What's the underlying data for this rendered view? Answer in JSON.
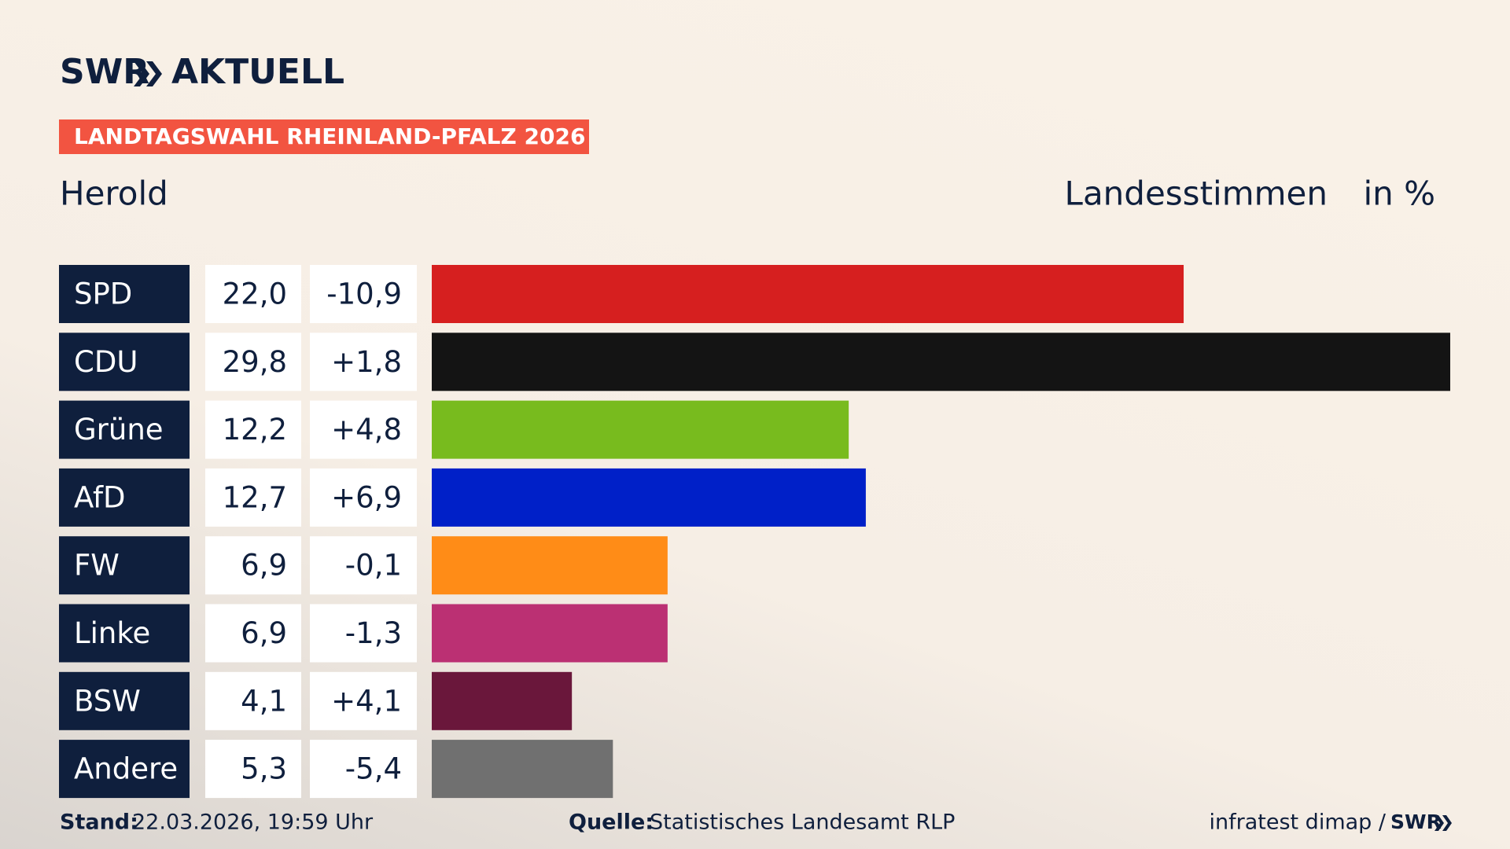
{
  "chart_data": {
    "type": "bar",
    "logo": "SWR",
    "logo_suffix": "AKTUELL",
    "banner": "LANDTAGSWAHL RHEINLAND-PFALZ 2026",
    "title": "Herold",
    "value_header": "Landesstimmen",
    "unit": "in %",
    "categories": [
      "SPD",
      "CDU",
      "Grüne",
      "AfD",
      "FW",
      "Linke",
      "BSW",
      "Andere"
    ],
    "values": [
      22.0,
      29.8,
      12.2,
      12.7,
      6.9,
      6.9,
      4.1,
      5.3
    ],
    "value_labels": [
      "22,0",
      "29,8",
      "12,2",
      "12,7",
      "6,9",
      "6,9",
      "4,1",
      "5,3"
    ],
    "changes": [
      -10.9,
      1.8,
      4.8,
      6.9,
      -0.1,
      -1.3,
      4.1,
      -5.4
    ],
    "change_labels": [
      "-10,9",
      "+1,8",
      "+4,8",
      "+6,9",
      "-0,1",
      "-1,3",
      "+4,1",
      "-5,4"
    ],
    "colors": [
      "#d61f1f",
      "#141414",
      "#78bb1e",
      "#0020c8",
      "#ff8c17",
      "#bb3073",
      "#6a173b",
      "#707070"
    ],
    "stand_label": "Stand:",
    "stand": "22.03.2026, 19:59 Uhr",
    "source_label": "Quelle:",
    "source": "Statistisches Landesamt RLP",
    "credit": "infratest dimap /",
    "credit_logo": "SWR"
  }
}
